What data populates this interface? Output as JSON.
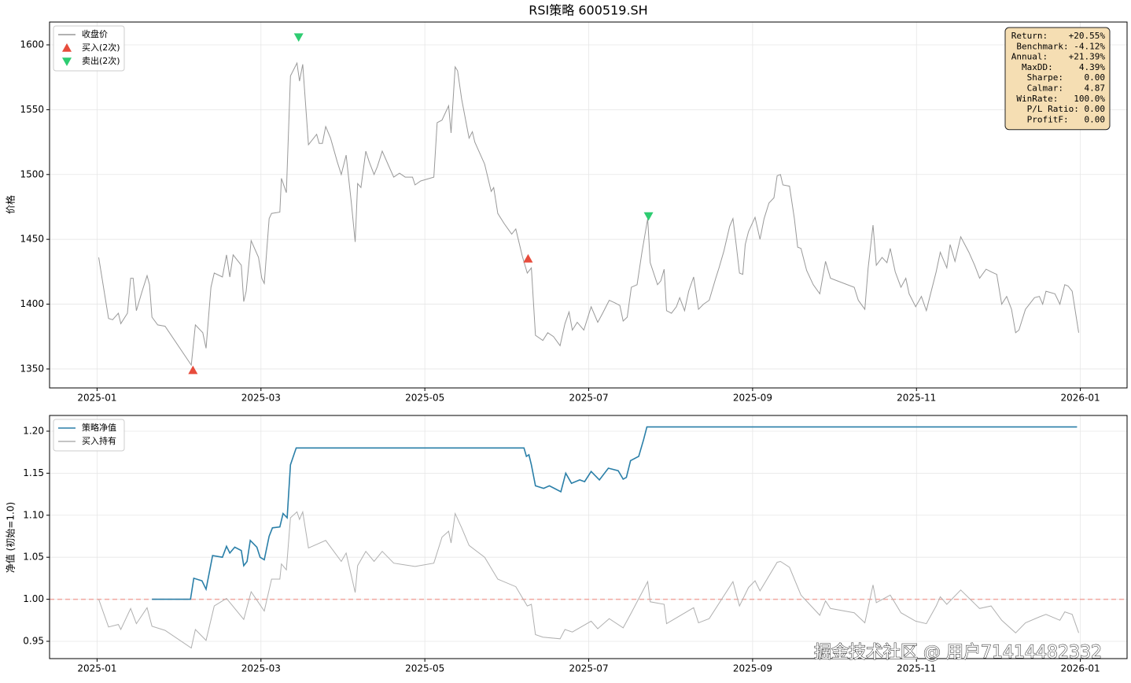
{
  "chart_data": [
    {
      "type": "line",
      "title": "RSI策略  600519.SH",
      "ylabel": "价格",
      "xlim": [
        -0.58,
        12.57
      ],
      "ylim": [
        1335.4,
        1617.6
      ],
      "xticks": [
        {
          "value": 0,
          "label": "2025-01"
        },
        {
          "value": 2,
          "label": "2025-03"
        },
        {
          "value": 4,
          "label": "2025-05"
        },
        {
          "value": 6,
          "label": "2025-07"
        },
        {
          "value": 8,
          "label": "2025-09"
        },
        {
          "value": 10,
          "label": "2025-11"
        },
        {
          "value": 12,
          "label": "2026-01"
        }
      ],
      "yticks": [
        1350,
        1400,
        1450,
        1500,
        1550,
        1600
      ],
      "grid": true,
      "legend": "upper left",
      "series": [
        {
          "name": "收盘价",
          "color": "#999999",
          "x": [
            0.02,
            0.14,
            0.19,
            0.26,
            0.29,
            0.37,
            0.41,
            0.44,
            0.48,
            0.55,
            0.61,
            0.64,
            0.67,
            0.74,
            0.83,
            1.15,
            1.2,
            1.29,
            1.33,
            1.39,
            1.43,
            1.53,
            1.58,
            1.62,
            1.66,
            1.76,
            1.79,
            1.82,
            1.88,
            1.97,
            2.01,
            2.04,
            2.1,
            2.13,
            2.23,
            2.25,
            2.31,
            2.36,
            2.44,
            2.47,
            2.51,
            2.58,
            2.68,
            2.71,
            2.75,
            2.79,
            2.85,
            2.93,
            2.98,
            3.04,
            3.1,
            3.15,
            3.18,
            3.22,
            3.28,
            3.32,
            3.38,
            3.42,
            3.48,
            3.57,
            3.62,
            3.69,
            3.76,
            3.85,
            3.88,
            3.95,
            4.11,
            4.15,
            4.21,
            4.29,
            4.32,
            4.37,
            4.4,
            4.45,
            4.54,
            4.58,
            4.61,
            4.73,
            4.81,
            4.84,
            4.89,
            4.97,
            5.06,
            5.11,
            5.19,
            5.25,
            5.3,
            5.35,
            5.44,
            5.5,
            5.57,
            5.65,
            5.71,
            5.76,
            5.8,
            5.86,
            5.94,
            6.03,
            6.11,
            6.17,
            6.25,
            6.32,
            6.38,
            6.42,
            6.47,
            6.52,
            6.59,
            6.65,
            6.72,
            6.75,
            6.84,
            6.88,
            6.92,
            6.95,
            7.01,
            7.07,
            7.11,
            7.17,
            7.22,
            7.28,
            7.34,
            7.4,
            7.47,
            7.55,
            7.59,
            7.65,
            7.72,
            7.76,
            7.8,
            7.84,
            7.88,
            7.91,
            7.95,
            8.03,
            8.09,
            8.14,
            8.2,
            8.26,
            8.3,
            8.34,
            8.37,
            8.45,
            8.51,
            8.55,
            8.59,
            8.66,
            8.74,
            8.82,
            8.89,
            8.95,
            9.24,
            9.29,
            9.37,
            9.41,
            9.47,
            9.51,
            9.58,
            9.64,
            9.68,
            9.74,
            9.81,
            9.87,
            9.91,
            9.99,
            10.06,
            10.12,
            10.18,
            10.24,
            10.29,
            10.37,
            10.41,
            10.47,
            10.54,
            10.64,
            10.71,
            10.77,
            10.85,
            10.91,
            10.98,
            11.04,
            11.1,
            11.16,
            11.21,
            11.25,
            11.33,
            11.44,
            11.5,
            11.54,
            11.58,
            11.69,
            11.75,
            11.81,
            11.85,
            11.9,
            11.98
          ],
          "values": [
            1436,
            1389,
            1388,
            1393,
            1385,
            1393,
            1420,
            1420,
            1395,
            1410,
            1422,
            1415,
            1390,
            1384,
            1383,
            1353,
            1384,
            1378,
            1366,
            1413,
            1424,
            1421,
            1438,
            1421,
            1438,
            1430,
            1402,
            1410,
            1449,
            1436,
            1420,
            1416,
            1466,
            1470,
            1471,
            1497,
            1486,
            1576,
            1586,
            1572,
            1585,
            1523,
            1531,
            1524,
            1524,
            1537,
            1528,
            1510,
            1500,
            1515,
            1480,
            1448,
            1493,
            1490,
            1518,
            1510,
            1500,
            1506,
            1518,
            1505,
            1498,
            1501,
            1498,
            1498,
            1492,
            1495,
            1498,
            1540,
            1542,
            1553,
            1532,
            1583,
            1580,
            1558,
            1528,
            1533,
            1525,
            1508,
            1487,
            1490,
            1470,
            1462,
            1454,
            1458,
            1437,
            1424,
            1428,
            1376,
            1372,
            1378,
            1375,
            1368,
            1385,
            1394,
            1380,
            1386,
            1380,
            1398,
            1386,
            1393,
            1403,
            1401,
            1399,
            1387,
            1390,
            1413,
            1415,
            1440,
            1466,
            1432,
            1415,
            1418,
            1427,
            1395,
            1393,
            1398,
            1405,
            1395,
            1410,
            1421,
            1396,
            1400,
            1403,
            1420,
            1428,
            1441,
            1460,
            1466,
            1446,
            1424,
            1423,
            1446,
            1456,
            1467,
            1450,
            1466,
            1478,
            1482,
            1499,
            1500,
            1492,
            1491,
            1466,
            1444,
            1443,
            1426,
            1415,
            1408,
            1433,
            1420,
            1413,
            1403,
            1396,
            1428,
            1461,
            1430,
            1436,
            1432,
            1443,
            1425,
            1413,
            1420,
            1408,
            1398,
            1406,
            1395,
            1410,
            1425,
            1440,
            1428,
            1446,
            1433,
            1452,
            1440,
            1430,
            1420,
            1427,
            1425,
            1423,
            1400,
            1406,
            1396,
            1378,
            1380,
            1396,
            1405,
            1406,
            1400,
            1410,
            1408,
            1400,
            1415,
            1414,
            1410,
            1378
          ]
        },
        {
          "name": "买入(2次)",
          "color": "#e74c3c",
          "marker": "up",
          "x": [
            1.17,
            5.26
          ],
          "values": [
            1349,
            1435
          ]
        },
        {
          "name": "卖出(2次)",
          "color": "#2ecc71",
          "marker": "down",
          "x": [
            2.46,
            6.73
          ],
          "values": [
            1606,
            1468
          ]
        }
      ],
      "stats": [
        "Return:    +20.55%",
        "Benchmark: -4.12%",
        "Annual:    +21.39%",
        "MaxDD:     4.39%",
        "Sharpe:    0.00",
        "Calmar:    4.87",
        "WinRate:   100.0%",
        "P/L Ratio: 0.00",
        "ProfitF:   0.00"
      ]
    },
    {
      "type": "line",
      "ylabel": "净值 (初始=1.0)",
      "xlim": [
        -0.58,
        12.57
      ],
      "ylim": [
        0.9294,
        1.2187
      ],
      "xticks": [
        {
          "value": 0,
          "label": "2025-01"
        },
        {
          "value": 2,
          "label": "2025-03"
        },
        {
          "value": 4,
          "label": "2025-05"
        },
        {
          "value": 6,
          "label": "2025-07"
        },
        {
          "value": 8,
          "label": "2025-09"
        },
        {
          "value": 10,
          "label": "2025-11"
        },
        {
          "value": 12,
          "label": "2026-01"
        }
      ],
      "yticks": [
        0.95,
        {
          "value": 1,
          "label": "1.00"
        },
        1.05,
        {
          "value": 1.1,
          "label": "1.10"
        },
        1.15,
        {
          "value": 1.2,
          "label": "1.20"
        }
      ],
      "grid": true,
      "legend": "upper left",
      "reference_line": 1,
      "reference_color": "#f1a8a0",
      "series": [
        {
          "name": "策略净值",
          "color": "#2a7fa8",
          "x": [
            0.67,
            1.14,
            1.18,
            1.28,
            1.33,
            1.41,
            1.53,
            1.58,
            1.62,
            1.68,
            1.76,
            1.79,
            1.83,
            1.87,
            1.95,
            1.99,
            2.04,
            2.1,
            2.14,
            2.23,
            2.27,
            2.32,
            2.36,
            2.43,
            5.21,
            5.24,
            5.27,
            5.3,
            5.35,
            5.45,
            5.52,
            5.58,
            5.66,
            5.72,
            5.79,
            5.89,
            5.95,
            6.03,
            6.13,
            6.24,
            6.36,
            6.42,
            6.46,
            6.51,
            6.61,
            6.67,
            6.71,
            11.96
          ],
          "values": [
            1.0,
            1.0,
            1.025,
            1.022,
            1.012,
            1.052,
            1.05,
            1.063,
            1.055,
            1.062,
            1.058,
            1.04,
            1.045,
            1.07,
            1.062,
            1.05,
            1.047,
            1.075,
            1.085,
            1.086,
            1.102,
            1.097,
            1.16,
            1.18,
            1.18,
            1.17,
            1.172,
            1.16,
            1.135,
            1.132,
            1.135,
            1.132,
            1.128,
            1.15,
            1.138,
            1.142,
            1.14,
            1.152,
            1.142,
            1.156,
            1.153,
            1.143,
            1.145,
            1.165,
            1.17,
            1.19,
            1.205,
            1.205
          ]
        },
        {
          "name": "买入持有",
          "color": "#b0b0b0",
          "x": [
            0.02,
            0.14,
            0.26,
            0.29,
            0.41,
            0.48,
            0.61,
            0.67,
            0.83,
            1.15,
            1.2,
            1.33,
            1.43,
            1.58,
            1.79,
            1.88,
            2.04,
            2.13,
            2.23,
            2.25,
            2.31,
            2.36,
            2.44,
            2.47,
            2.51,
            2.58,
            2.79,
            2.98,
            3.04,
            3.15,
            3.18,
            3.28,
            3.38,
            3.48,
            3.62,
            3.88,
            4.11,
            4.21,
            4.29,
            4.32,
            4.37,
            4.45,
            4.54,
            4.73,
            4.89,
            5.11,
            5.25,
            5.3,
            5.35,
            5.44,
            5.65,
            5.71,
            5.8,
            6.03,
            6.11,
            6.25,
            6.42,
            6.52,
            6.72,
            6.75,
            6.92,
            6.95,
            7.28,
            7.34,
            7.47,
            7.76,
            7.84,
            7.95,
            8.03,
            8.09,
            8.3,
            8.34,
            8.45,
            8.59,
            8.82,
            8.89,
            8.95,
            9.24,
            9.37,
            9.47,
            9.51,
            9.68,
            9.81,
            9.99,
            10.12,
            10.24,
            10.29,
            10.37,
            10.54,
            10.77,
            10.91,
            11.04,
            11.21,
            11.33,
            11.5,
            11.58,
            11.75,
            11.81,
            11.9,
            11.98
          ],
          "values": [
            1.0,
            0.967,
            0.97,
            0.964,
            0.989,
            0.971,
            0.99,
            0.968,
            0.963,
            0.942,
            0.964,
            0.951,
            0.992,
            1.001,
            0.976,
            1.009,
            0.986,
            1.024,
            1.024,
            1.042,
            1.035,
            1.097,
            1.104,
            1.095,
            1.104,
            1.061,
            1.07,
            1.045,
            1.055,
            1.008,
            1.04,
            1.057,
            1.045,
            1.057,
            1.043,
            1.039,
            1.043,
            1.074,
            1.081,
            1.067,
            1.102,
            1.085,
            1.064,
            1.05,
            1.024,
            1.015,
            0.992,
            0.994,
            0.958,
            0.955,
            0.953,
            0.964,
            0.961,
            0.974,
            0.965,
            0.977,
            0.966,
            0.984,
            1.021,
            0.997,
            0.994,
            0.971,
            0.99,
            0.972,
            0.977,
            1.021,
            0.992,
            1.014,
            1.022,
            1.01,
            1.044,
            1.045,
            1.038,
            1.005,
            0.981,
            0.998,
            0.989,
            0.984,
            0.972,
            1.017,
            0.996,
            1.005,
            0.984,
            0.974,
            0.971,
            0.992,
            1.003,
            0.994,
            1.011,
            0.989,
            0.992,
            0.975,
            0.96,
            0.972,
            0.979,
            0.982,
            0.975,
            0.985,
            0.982,
            0.96
          ]
        }
      ]
    }
  ],
  "watermark": "掘金技术社区 @ 用户71414482332"
}
